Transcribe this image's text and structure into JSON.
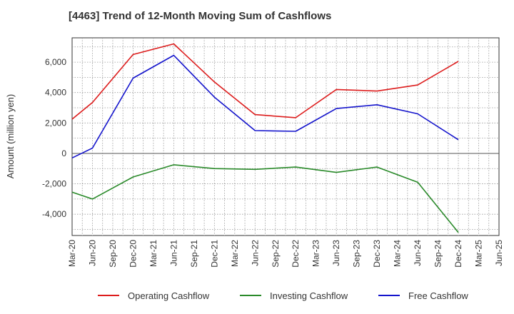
{
  "chart_data": {
    "type": "line",
    "title": "[4463]  Trend of 12-Month Moving Sum of Cashflows",
    "xlabel": "",
    "ylabel": "Amount (million yen)",
    "categories": [
      "Mar-20",
      "Jun-20",
      "Sep-20",
      "Dec-20",
      "Mar-21",
      "Jun-21",
      "Sep-21",
      "Dec-21",
      "Mar-22",
      "Jun-22",
      "Sep-22",
      "Dec-22",
      "Mar-23",
      "Jun-23",
      "Sep-23",
      "Dec-23",
      "Mar-24",
      "Jun-24",
      "Sep-24",
      "Dec-24",
      "Mar-25",
      "Jun-25"
    ],
    "ylim": [
      -5400,
      7600
    ],
    "yticks": [
      -4000,
      -2000,
      0,
      2000,
      4000,
      6000
    ],
    "ytick_labels": [
      "-4,000",
      "-2,000",
      "0",
      "2,000",
      "4,000",
      "6,000"
    ],
    "grid": true,
    "legend": "bottom",
    "series": [
      {
        "name": "Operating Cashflow",
        "color": "#dd1c1c",
        "values": [
          2250,
          3350,
          null,
          6500,
          null,
          7200,
          null,
          4700,
          null,
          2550,
          null,
          2350,
          null,
          4200,
          null,
          4100,
          null,
          4500,
          null,
          6050,
          null,
          null
        ]
      },
      {
        "name": "Investing Cashflow",
        "color": "#2a8a2a",
        "values": [
          -2550,
          -3000,
          null,
          -1550,
          null,
          -750,
          null,
          -1000,
          null,
          -1050,
          null,
          -900,
          null,
          -1250,
          null,
          -900,
          null,
          -1900,
          null,
          -5200,
          null,
          null
        ]
      },
      {
        "name": "Free Cashflow",
        "color": "#1414cc",
        "values": [
          -300,
          350,
          null,
          4950,
          null,
          6450,
          null,
          3700,
          null,
          1500,
          null,
          1450,
          null,
          2950,
          null,
          3200,
          null,
          2600,
          null,
          900,
          null,
          null
        ]
      }
    ]
  }
}
